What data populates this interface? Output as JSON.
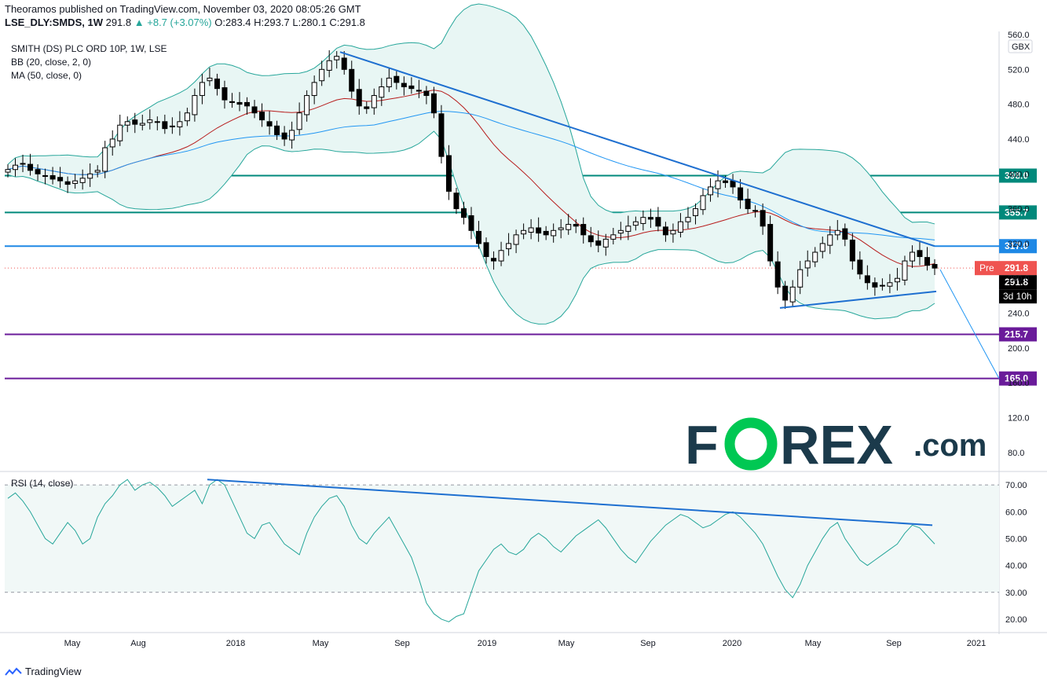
{
  "header": {
    "publisher_line": "Theoramos published on TradingView.com, November 03, 2020 08:05:26 GMT",
    "symbol": "LSE_DLY:SMDS, 1W",
    "last": "291.8",
    "change": "▲ +8.7 (+3.07%)",
    "o_label": "O:",
    "o": "283.4",
    "h_label": "H:",
    "h": "293.7",
    "l_label": "L:",
    "l": "280.1",
    "c_label": "C:",
    "c": "291.8"
  },
  "legend": {
    "title": "SMITH (DS) PLC ORD 10P, 1W, LSE",
    "bb": "BB (20, close, 2, 0)",
    "ma": "MA (50, close, 0)",
    "rsi": "RSI (14, close)"
  },
  "footer": {
    "brand": "TradingView"
  },
  "watermark": {
    "text_left": "F",
    "text_mid": "REX",
    "text_right": ".com"
  },
  "colors": {
    "up": "#ffffff",
    "down": "#000000",
    "bb_band": "#26a69a",
    "bb_fill": "#e8f6f4",
    "ma": "#2196f3",
    "bb_basis": "#b71c1c",
    "trend": "#1e6fd0",
    "green_level": "#00897b",
    "blue_level": "#1e88e5",
    "purple_level": "#6a1b9a",
    "rsi": "#26a69a",
    "watermark_dark": "#1b3a4b",
    "watermark_green": "#00c853"
  },
  "chart_data": [
    {
      "type": "candlestick",
      "title": "SMITH (DS) PLC ORD 10P, 1W, LSE",
      "unit": "GBX",
      "ylim": [
        60,
        560
      ],
      "y_ticks": [
        "80.0",
        "120.0",
        "160.0",
        "200.0",
        "240.0",
        "280.0",
        "320.0",
        "360.0",
        "400.0",
        "440.0",
        "480.0",
        "520.0",
        "560.0"
      ],
      "x_ticks": [
        "May",
        "Aug",
        "2018",
        "May",
        "Sep",
        "2019",
        "May",
        "Sep",
        "2020",
        "May",
        "Sep",
        "2021"
      ],
      "horizontal_levels": [
        {
          "value": 398.0,
          "label": "398.0",
          "color_key": "green_level"
        },
        {
          "value": 355.7,
          "label": "355.7",
          "color_key": "green_level"
        },
        {
          "value": 317.0,
          "label": "317.0",
          "color_key": "blue_level"
        },
        {
          "value": 215.7,
          "label": "215.7",
          "color_key": "purple_level"
        },
        {
          "value": 165.0,
          "label": "165.0",
          "color_key": "purple_level"
        }
      ],
      "price_labels": [
        {
          "label": "Pre",
          "value": "291.8"
        },
        {
          "value": "291.8"
        },
        {
          "value": "3d 10h"
        }
      ],
      "trendlines": [
        {
          "from": [
            "2018-06",
            540
          ],
          "to": [
            "2020-10",
            317
          ]
        },
        {
          "from": [
            "2020-03",
            246
          ],
          "to": [
            "2020-10",
            265
          ]
        },
        {
          "from": [
            "2020-10",
            290
          ],
          "to": [
            "2020-12",
            165
          ]
        }
      ],
      "series_close": [
        405,
        410,
        412,
        404,
        400,
        398,
        394,
        392,
        388,
        392,
        395,
        400,
        404,
        430,
        440,
        456,
        460,
        457,
        458,
        462,
        460,
        452,
        455,
        460,
        470,
        490,
        505,
        510,
        498,
        485,
        482,
        480,
        478,
        470,
        462,
        455,
        445,
        440,
        450,
        470,
        490,
        505,
        520,
        530,
        535,
        520,
        495,
        478,
        475,
        490,
        500,
        510,
        505,
        500,
        498,
        495,
        490,
        470,
        420,
        380,
        360,
        350,
        335,
        320,
        305,
        300,
        312,
        320,
        330,
        335,
        338,
        332,
        330,
        335,
        338,
        342,
        340,
        330,
        322,
        318,
        325,
        330,
        335,
        340,
        345,
        350,
        348,
        340,
        330,
        335,
        345,
        350,
        360,
        375,
        385,
        392,
        390,
        385,
        370,
        360,
        358,
        340,
        300,
        270,
        255,
        270,
        290,
        300,
        310,
        320,
        330,
        335,
        325,
        300,
        285,
        275,
        270,
        272,
        275,
        280,
        300,
        310,
        305,
        295,
        291.8
      ]
    },
    {
      "type": "line",
      "title": "RSI (14, close)",
      "ylim": [
        15,
        75
      ],
      "y_ticks": [
        "20.00",
        "30.00",
        "40.00",
        "50.00",
        "60.00",
        "70.00"
      ],
      "bands": [
        30,
        70
      ],
      "values": [
        65,
        67,
        64,
        60,
        55,
        50,
        48,
        52,
        56,
        53,
        48,
        50,
        58,
        63,
        66,
        70,
        72,
        68,
        70,
        71,
        69,
        66,
        62,
        64,
        66,
        68,
        63,
        70,
        72,
        70,
        64,
        58,
        52,
        50,
        55,
        56,
        52,
        48,
        46,
        44,
        52,
        58,
        62,
        65,
        66,
        62,
        55,
        50,
        48,
        52,
        55,
        58,
        53,
        48,
        43,
        35,
        26,
        22,
        20,
        19,
        21,
        22,
        30,
        38,
        42,
        46,
        48,
        45,
        44,
        46,
        50,
        52,
        50,
        47,
        45,
        48,
        51,
        53,
        55,
        57,
        54,
        50,
        46,
        43,
        41,
        45,
        49,
        52,
        55,
        57,
        59,
        58,
        56,
        54,
        55,
        57,
        59,
        60,
        58,
        55,
        52,
        48,
        42,
        36,
        31,
        28,
        33,
        40,
        45,
        50,
        54,
        56,
        50,
        46,
        42,
        40,
        42,
        44,
        46,
        48,
        52,
        55,
        54,
        51,
        48
      ]
    }
  ]
}
